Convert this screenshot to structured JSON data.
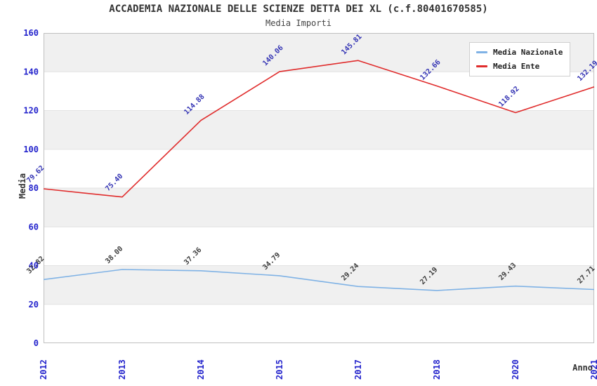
{
  "title": "ACCADEMIA NAZIONALE DELLE SCIENZE DETTA DEI XL (c.f.80401670585)",
  "subtitle": "Media Importi",
  "chart_data": {
    "type": "line",
    "categories": [
      "2012",
      "2013",
      "2014",
      "2015",
      "2017",
      "2018",
      "2020",
      "2021"
    ],
    "series": [
      {
        "name": "Media Nazionale",
        "values": [
          32.82,
          38.0,
          37.36,
          34.79,
          29.24,
          27.19,
          29.43,
          27.71
        ],
        "color": "#7fb2e5",
        "label_color": "#3d3d3d"
      },
      {
        "name": "Media Ente",
        "values": [
          79.62,
          75.4,
          114.88,
          140.06,
          145.81,
          132.66,
          118.92,
          132.19
        ],
        "color": "#e02c2c",
        "label_color": "#3434b4"
      }
    ],
    "xlabel": "Anno",
    "ylabel": "Media",
    "ylim": [
      0,
      160
    ],
    "ytick_step": 20,
    "yticks": [
      0,
      20,
      40,
      60,
      80,
      100,
      120,
      140,
      160
    ],
    "legend_position": "top-right",
    "grid": "horizontal-bands",
    "band_color": "#f0f0f0",
    "band_line_color": "#e2e2e2",
    "plot_border_color": "#c0c0c0",
    "axis_label_color": "#2323cc",
    "data_label_decimals": 2
  }
}
